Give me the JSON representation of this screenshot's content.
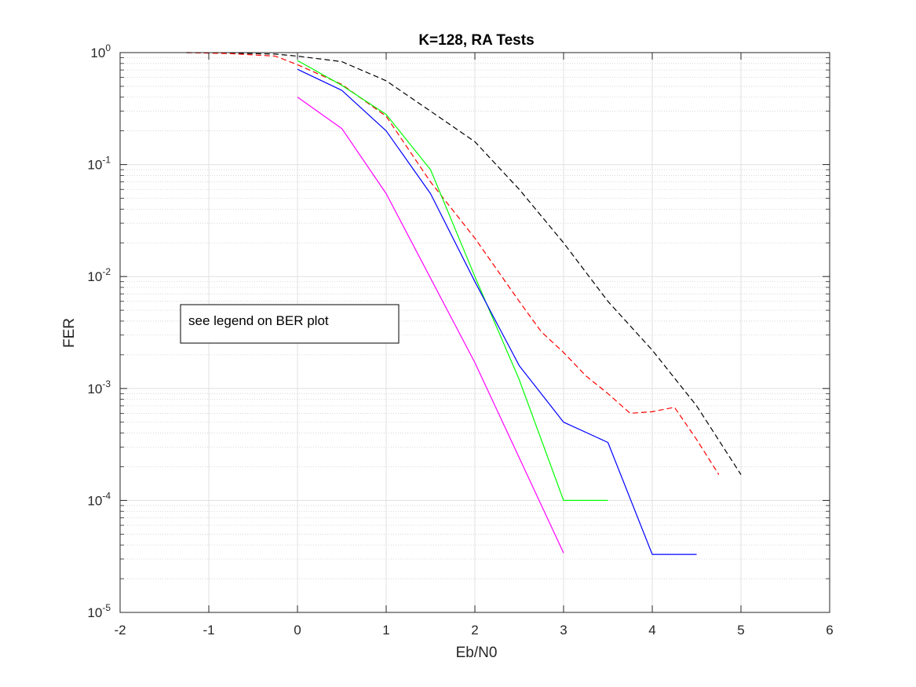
{
  "chart_data": {
    "type": "line",
    "title": "K=128, RA Tests",
    "xlabel": "Eb/N0",
    "ylabel": "FER",
    "xlim": [
      -2,
      6
    ],
    "ylim": [
      1e-05,
      1
    ],
    "yscale": "log",
    "grid": true,
    "minor_grid": true,
    "xticks": [
      -2,
      -1,
      0,
      1,
      2,
      3,
      4,
      5,
      6
    ],
    "xtick_labels": [
      "-2",
      "-1",
      "0",
      "1",
      "2",
      "3",
      "4",
      "5",
      "6"
    ],
    "yticks": [
      {
        "value": 1,
        "base": "10",
        "exp": "0"
      },
      {
        "value": 0.1,
        "base": "10",
        "exp": "-1"
      },
      {
        "value": 0.01,
        "base": "10",
        "exp": "-2"
      },
      {
        "value": 0.001,
        "base": "10",
        "exp": "-3"
      },
      {
        "value": 0.0001,
        "base": "10",
        "exp": "-4"
      },
      {
        "value": 1e-05,
        "base": "10",
        "exp": "-5"
      }
    ],
    "annotation": "see legend on BER plot",
    "series": [
      {
        "color": "#000000",
        "dashed": true,
        "x": [
          -1.25,
          -0.75,
          -0.25,
          0,
          0.5,
          1,
          1.5,
          2,
          2.5,
          3,
          3.5,
          4,
          4.5,
          5
        ],
        "y": [
          1.0,
          0.99,
          0.97,
          0.93,
          0.83,
          0.56,
          0.3,
          0.16,
          0.06,
          0.02,
          0.006,
          0.0022,
          0.0007,
          0.00017
        ]
      },
      {
        "color": "#ff0000",
        "dashed": true,
        "x": [
          -1.25,
          -0.75,
          -0.25,
          0,
          0.5,
          1,
          1.5,
          2,
          2.5,
          2.75,
          3,
          3.25,
          3.5,
          3.75,
          4,
          4.25,
          4.5,
          4.75
        ],
        "y": [
          1.0,
          0.98,
          0.93,
          0.78,
          0.52,
          0.27,
          0.07,
          0.022,
          0.006,
          0.0032,
          0.0021,
          0.0013,
          0.0009,
          0.0006,
          0.00062,
          0.00068,
          0.00035,
          0.00017
        ]
      },
      {
        "color": "#00ff00",
        "dashed": false,
        "x": [
          0,
          0.5,
          1,
          1.5,
          2,
          2.5,
          3,
          3.5
        ],
        "y": [
          0.85,
          0.51,
          0.28,
          0.09,
          0.01,
          0.0012,
          0.0001,
          0.0001
        ]
      },
      {
        "color": "#0000ff",
        "dashed": false,
        "x": [
          0,
          0.5,
          1,
          1.5,
          2,
          2.5,
          3,
          3.5,
          4,
          4.5
        ],
        "y": [
          0.71,
          0.46,
          0.2,
          0.055,
          0.009,
          0.0016,
          0.0005,
          0.00033,
          3.3e-05,
          3.3e-05
        ]
      },
      {
        "color": "#ff00ff",
        "dashed": false,
        "x": [
          0,
          0.5,
          1,
          2,
          3
        ],
        "y": [
          0.4,
          0.21,
          0.055,
          0.0017,
          3.4e-05
        ]
      }
    ]
  }
}
